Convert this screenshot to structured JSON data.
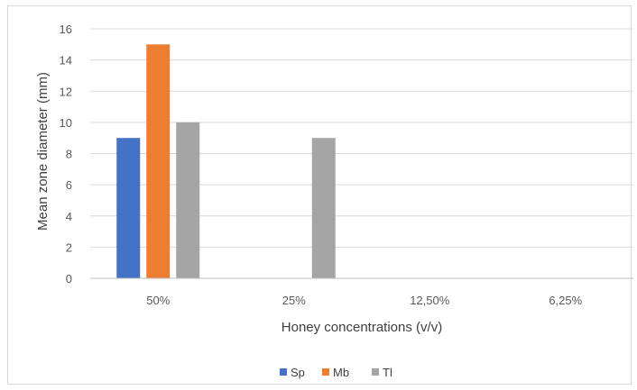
{
  "chart_data": {
    "type": "bar",
    "categories": [
      "50%",
      "25%",
      "12,50%",
      "6,25%"
    ],
    "series": [
      {
        "name": "Sp",
        "values": [
          9,
          0,
          0,
          0
        ],
        "color": "#4472c4"
      },
      {
        "name": "Mb",
        "values": [
          15,
          0,
          0,
          0
        ],
        "color": "#ed7d31"
      },
      {
        "name": "Tl",
        "values": [
          10,
          9,
          0,
          0
        ],
        "color": "#a5a5a5"
      }
    ],
    "title": "",
    "xlabel": "Honey concentrations (v/v)",
    "ylabel": "Mean zone diameter (mm)",
    "ylim": [
      0,
      16
    ],
    "yticks": [
      "0",
      "2",
      "4",
      "6",
      "8",
      "10",
      "12",
      "14",
      "16"
    ],
    "grid": true,
    "legend": "bottom",
    "gridline_color": "#d9d9d9",
    "axis_line_color": "#bfbfbf"
  }
}
